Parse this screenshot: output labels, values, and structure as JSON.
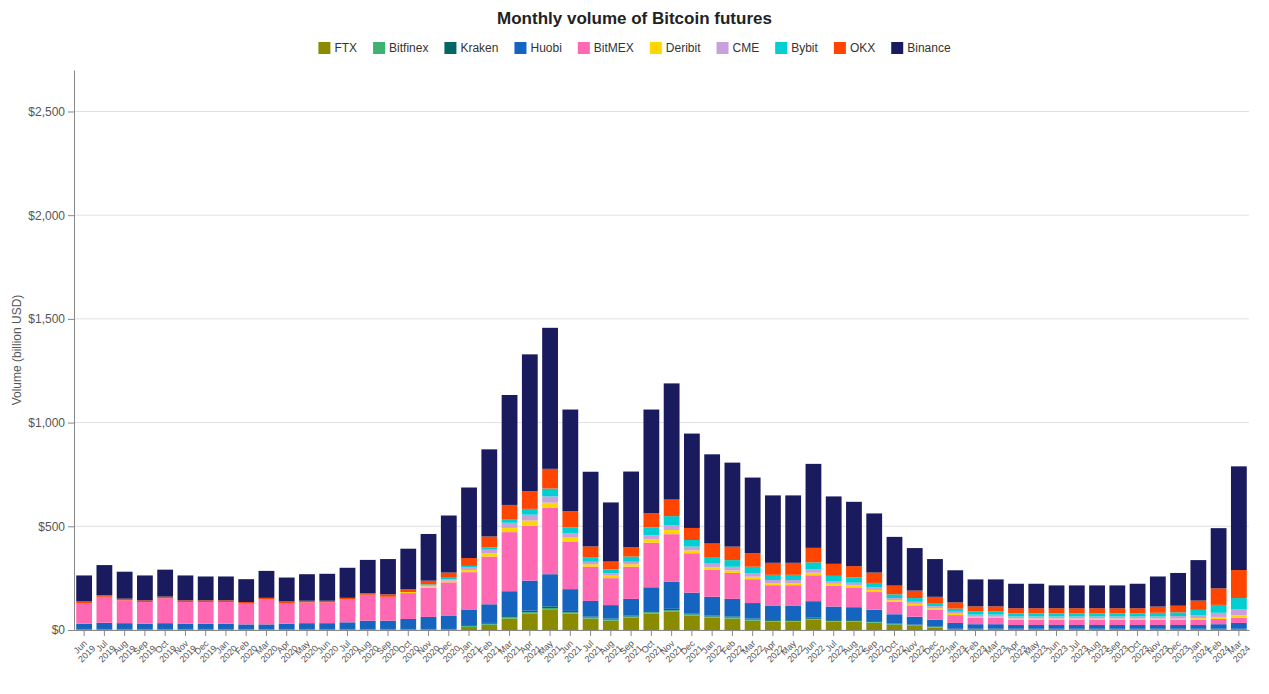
{
  "chart_data": {
    "type": "bar",
    "stacked": true,
    "title": "Monthly volume of Bitcoin futures",
    "ylabel": "Volume (billion USD)",
    "categories": [
      "Jun\n2019",
      "Jul\n2019",
      "Aug\n2019",
      "Sep\n2019",
      "Oct\n2019",
      "Nov\n2019",
      "Dec\n2019",
      "Jan\n2020",
      "Feb\n2020",
      "Mar\n2020",
      "Apr\n2020",
      "May\n2020",
      "Jun\n2020",
      "Jul\n2020",
      "Aug\n2020",
      "Sep\n2020",
      "Oct\n2020",
      "Nov\n2020",
      "Dec\n2020",
      "Jan\n2021",
      "Feb\n2021",
      "Mar\n2021",
      "Apr\n2021",
      "May\n2021",
      "Jun\n2021",
      "Jul\n2021",
      "Aug\n2021",
      "Sep\n2021",
      "Oct\n2021",
      "Nov\n2021",
      "Dec\n2021",
      "Jan\n2022",
      "Feb\n2022",
      "Mar\n2022",
      "Apr\n2022",
      "May\n2022",
      "Jun\n2022",
      "Jul\n2022",
      "Aug\n2022",
      "Sep\n2022",
      "Oct\n2022",
      "Nov\n2022",
      "Dec\n2022",
      "Jan\n2023",
      "Feb\n2023",
      "Mar\n2023",
      "Apr\n2023",
      "May\n2023",
      "Jun\n2023",
      "Jul\n2023",
      "Aug\n2023",
      "Sep\n2023",
      "Oct\n2023",
      "Nov\n2023",
      "Dec\n2023",
      "Jan\n2024",
      "Feb\n2024",
      "Mar\n2024"
    ],
    "series": [
      {
        "name": "FTX",
        "color": "#8B8B00",
        "values": [
          0,
          0,
          0,
          0,
          0,
          0,
          0,
          0,
          0,
          0,
          0,
          0,
          0,
          0,
          0,
          0,
          0,
          0,
          0,
          15,
          25,
          55,
          80,
          100,
          80,
          55,
          45,
          60,
          80,
          90,
          70,
          60,
          55,
          45,
          40,
          40,
          50,
          40,
          40,
          35,
          25,
          20,
          12,
          0,
          0,
          0,
          0,
          0,
          0,
          0,
          0,
          0,
          0,
          0,
          0,
          0,
          0,
          0
        ]
      },
      {
        "name": "Bitfinex",
        "color": "#3cb371",
        "values": [
          3,
          3,
          3,
          3,
          3,
          3,
          3,
          3,
          3,
          3,
          3,
          3,
          3,
          3,
          3,
          3,
          3,
          3,
          3,
          5,
          5,
          6,
          6,
          6,
          5,
          5,
          5,
          5,
          5,
          5,
          5,
          5,
          5,
          5,
          4,
          4,
          4,
          4,
          4,
          4,
          3,
          3,
          3,
          3,
          3,
          3,
          3,
          3,
          3,
          3,
          3,
          3,
          3,
          3,
          3,
          3,
          3,
          3
        ]
      },
      {
        "name": "Kraken",
        "color": "#006666",
        "values": [
          2,
          2,
          2,
          2,
          2,
          2,
          2,
          2,
          2,
          2,
          2,
          2,
          2,
          2,
          2,
          2,
          2,
          2,
          2,
          4,
          4,
          6,
          7,
          8,
          7,
          5,
          5,
          5,
          6,
          7,
          5,
          5,
          5,
          5,
          4,
          4,
          5,
          4,
          4,
          4,
          3,
          3,
          3,
          3,
          3,
          3,
          3,
          3,
          3,
          3,
          3,
          3,
          3,
          3,
          3,
          3,
          3,
          3
        ]
      },
      {
        "name": "Huobi",
        "color": "#1565C0",
        "values": [
          25,
          30,
          28,
          25,
          28,
          25,
          25,
          25,
          22,
          22,
          25,
          28,
          28,
          32,
          40,
          40,
          48,
          58,
          65,
          75,
          90,
          120,
          145,
          155,
          105,
          75,
          65,
          80,
          115,
          130,
          100,
          90,
          85,
          75,
          68,
          68,
          80,
          65,
          62,
          55,
          45,
          38,
          32,
          28,
          22,
          22,
          18,
          18,
          18,
          18,
          18,
          18,
          18,
          18,
          18,
          18,
          22,
          28
        ]
      },
      {
        "name": "BitMEX",
        "color": "#FF69B4",
        "values": [
          100,
          125,
          110,
          105,
          120,
          105,
          105,
          105,
          100,
          120,
          100,
          100,
          100,
          110,
          125,
          115,
          125,
          140,
          160,
          180,
          230,
          285,
          265,
          320,
          230,
          165,
          130,
          155,
          215,
          230,
          190,
          130,
          125,
          115,
          100,
          100,
          125,
          100,
          95,
          85,
          60,
          55,
          48,
          38,
          30,
          30,
          25,
          25,
          25,
          25,
          25,
          25,
          25,
          25,
          25,
          25,
          25,
          25
        ]
      },
      {
        "name": "Deribit",
        "color": "#FFD700",
        "values": [
          0,
          0,
          0,
          0,
          0,
          0,
          0,
          0,
          0,
          0,
          0,
          0,
          0,
          0,
          0,
          0,
          5,
          7,
          8,
          10,
          15,
          20,
          25,
          25,
          18,
          12,
          12,
          12,
          18,
          20,
          14,
          12,
          12,
          12,
          10,
          10,
          12,
          10,
          10,
          10,
          8,
          7,
          7,
          6,
          6,
          6,
          6,
          6,
          6,
          6,
          6,
          6,
          6,
          6,
          6,
          8,
          10,
          12
        ]
      },
      {
        "name": "CME",
        "color": "#C9A0DC",
        "values": [
          0,
          0,
          0,
          0,
          0,
          0,
          0,
          0,
          0,
          0,
          0,
          0,
          0,
          0,
          0,
          0,
          0,
          5,
          7,
          12,
          18,
          25,
          28,
          30,
          20,
          12,
          12,
          12,
          18,
          22,
          18,
          18,
          18,
          18,
          15,
          15,
          18,
          13,
          13,
          12,
          10,
          10,
          10,
          10,
          10,
          10,
          10,
          10,
          10,
          10,
          10,
          10,
          10,
          10,
          12,
          15,
          20,
          28
        ]
      },
      {
        "name": "Bybit",
        "color": "#00CED1",
        "values": [
          0,
          0,
          0,
          0,
          0,
          0,
          0,
          0,
          0,
          0,
          0,
          0,
          0,
          0,
          0,
          0,
          0,
          5,
          7,
          8,
          12,
          18,
          28,
          38,
          30,
          22,
          18,
          25,
          38,
          45,
          32,
          32,
          32,
          30,
          25,
          25,
          32,
          25,
          25,
          22,
          18,
          18,
          15,
          15,
          15,
          15,
          15,
          15,
          15,
          15,
          15,
          15,
          15,
          18,
          18,
          25,
          38,
          55
        ]
      },
      {
        "name": "OKX",
        "color": "#FF4500",
        "values": [
          8,
          8,
          8,
          8,
          8,
          8,
          8,
          8,
          8,
          8,
          8,
          8,
          8,
          8,
          8,
          12,
          14,
          18,
          25,
          38,
          52,
          68,
          85,
          95,
          78,
          52,
          38,
          45,
          68,
          80,
          58,
          65,
          65,
          65,
          58,
          58,
          70,
          58,
          55,
          50,
          42,
          36,
          30,
          30,
          25,
          25,
          25,
          25,
          25,
          25,
          25,
          25,
          25,
          30,
          32,
          45,
          80,
          135
        ]
      },
      {
        "name": "Binance",
        "color": "#1a1a5e",
        "values": [
          125,
          145,
          130,
          120,
          130,
          120,
          115,
          115,
          110,
          130,
          115,
          128,
          130,
          145,
          160,
          170,
          195,
          225,
          275,
          340,
          420,
          530,
          660,
          680,
          490,
          360,
          285,
          365,
          500,
          560,
          455,
          430,
          405,
          365,
          325,
          325,
          405,
          325,
          310,
          285,
          235,
          205,
          182,
          155,
          130,
          130,
          118,
          118,
          110,
          110,
          110,
          110,
          118,
          145,
          158,
          195,
          290,
          500
        ]
      }
    ],
    "ylim": [
      0,
      2700
    ],
    "yticks": [
      {
        "value": 0,
        "label": "$0"
      },
      {
        "value": 500,
        "label": "$500"
      },
      {
        "value": 1000,
        "label": "$1,000"
      },
      {
        "value": 1500,
        "label": "$1,500"
      },
      {
        "value": 2000,
        "label": "$2,000"
      },
      {
        "value": 2500,
        "label": "$2,500"
      }
    ],
    "grid": true,
    "legend": "top"
  }
}
